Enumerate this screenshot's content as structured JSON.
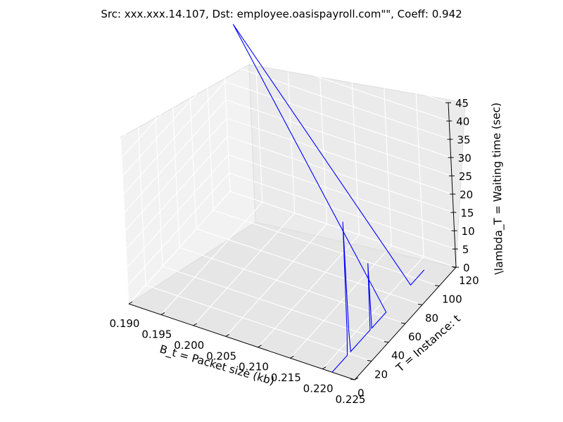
{
  "chart_data": {
    "type": "line",
    "projection": "3d",
    "title": "Src: xxx.xxx.14.107, Dst: employee.oasispayroll.com\"\", Coeff: 0.942",
    "xlabel": "B_t = Packet size (kb)",
    "ylabel": "T = Instance: t",
    "zlabel": "\\lambda_T = Waiting time (sec)",
    "xlim": [
      0.19,
      0.225
    ],
    "ylim": [
      0,
      120
    ],
    "zlim": [
      0,
      45
    ],
    "xticks": [
      "0.190",
      "0.195",
      "0.200",
      "0.205",
      "0.210",
      "0.215",
      "0.220",
      "0.225"
    ],
    "yticks": [
      "0",
      "20",
      "40",
      "60",
      "80",
      "100",
      "120"
    ],
    "zticks": [
      "0",
      "5",
      "10",
      "15",
      "20",
      "25",
      "30",
      "35",
      "40",
      "45"
    ],
    "grid": true,
    "series": [
      {
        "color": "#0000ff",
        "points": [
          {
            "x": 0.2215,
            "y": 0,
            "z": 0
          },
          {
            "x": 0.2215,
            "y": 18,
            "z": 0
          },
          {
            "x": 0.2215,
            "y": 19,
            "z": 6
          },
          {
            "x": 0.2215,
            "y": 20,
            "z": 36
          },
          {
            "x": 0.2215,
            "y": 21,
            "z": 6
          },
          {
            "x": 0.2215,
            "y": 22,
            "z": 0
          },
          {
            "x": 0.2215,
            "y": 45,
            "z": 0
          },
          {
            "x": 0.2215,
            "y": 46,
            "z": 18
          },
          {
            "x": 0.2215,
            "y": 47,
            "z": 0
          },
          {
            "x": 0.2215,
            "y": 64,
            "z": 0
          },
          {
            "x": 0.191,
            "y": 125,
            "z": 45
          },
          {
            "x": 0.2215,
            "y": 93,
            "z": 0
          },
          {
            "x": 0.2215,
            "y": 109,
            "z": 0
          }
        ]
      }
    ]
  }
}
